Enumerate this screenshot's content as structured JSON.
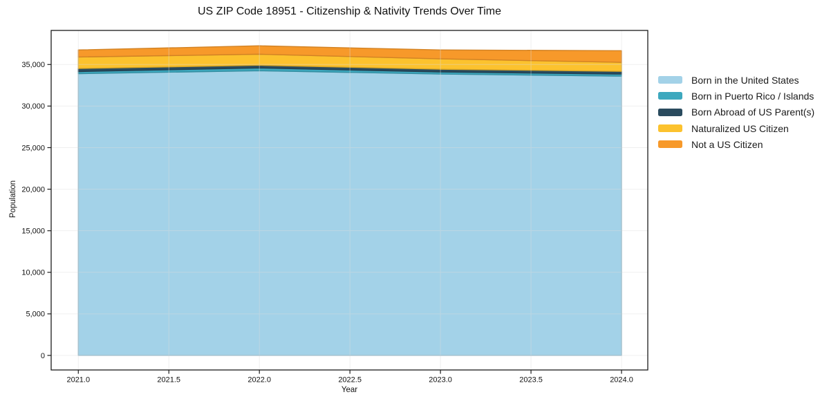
{
  "chart_data": {
    "type": "area",
    "stacked": true,
    "title": "US ZIP Code 18951 - Citizenship & Nativity Trends Over Time",
    "xlabel": "Year",
    "ylabel": "Population",
    "x": [
      2021.0,
      2022.0,
      2023.0,
      2024.0
    ],
    "series": [
      {
        "name": "Born in the United States",
        "color": "#a3d2e8",
        "values": [
          33900,
          34250,
          33850,
          33600
        ]
      },
      {
        "name": "Born in Puerto Rico / Islands",
        "color": "#3da8be",
        "values": [
          250,
          330,
          250,
          250
        ]
      },
      {
        "name": "Born Abroad of US Parent(s)",
        "color": "#2a4b5e",
        "values": [
          370,
          330,
          330,
          330
        ]
      },
      {
        "name": "Naturalized US Citizen",
        "color": "#fcc22e",
        "values": [
          1380,
          1330,
          1250,
          1080
        ]
      },
      {
        "name": "Not a US Citizen",
        "color": "#f7992a",
        "values": [
          850,
          1010,
          1070,
          1400
        ]
      }
    ],
    "totals": [
      36750,
      37250,
      36750,
      36660
    ],
    "xticks": [
      2021.0,
      2021.5,
      2022.0,
      2022.5,
      2023.0,
      2023.5,
      2024.0
    ],
    "xtick_decimals": 1,
    "yticks": [
      0,
      5000,
      10000,
      15000,
      20000,
      25000,
      30000,
      35000
    ],
    "xlim": [
      2020.85,
      2024.145
    ],
    "ylim": [
      -1750,
      39100
    ],
    "grid": true,
    "grid_color": "#dcdcdc",
    "spine_color": "#1a1a1a",
    "legend_position": "outside-right"
  }
}
